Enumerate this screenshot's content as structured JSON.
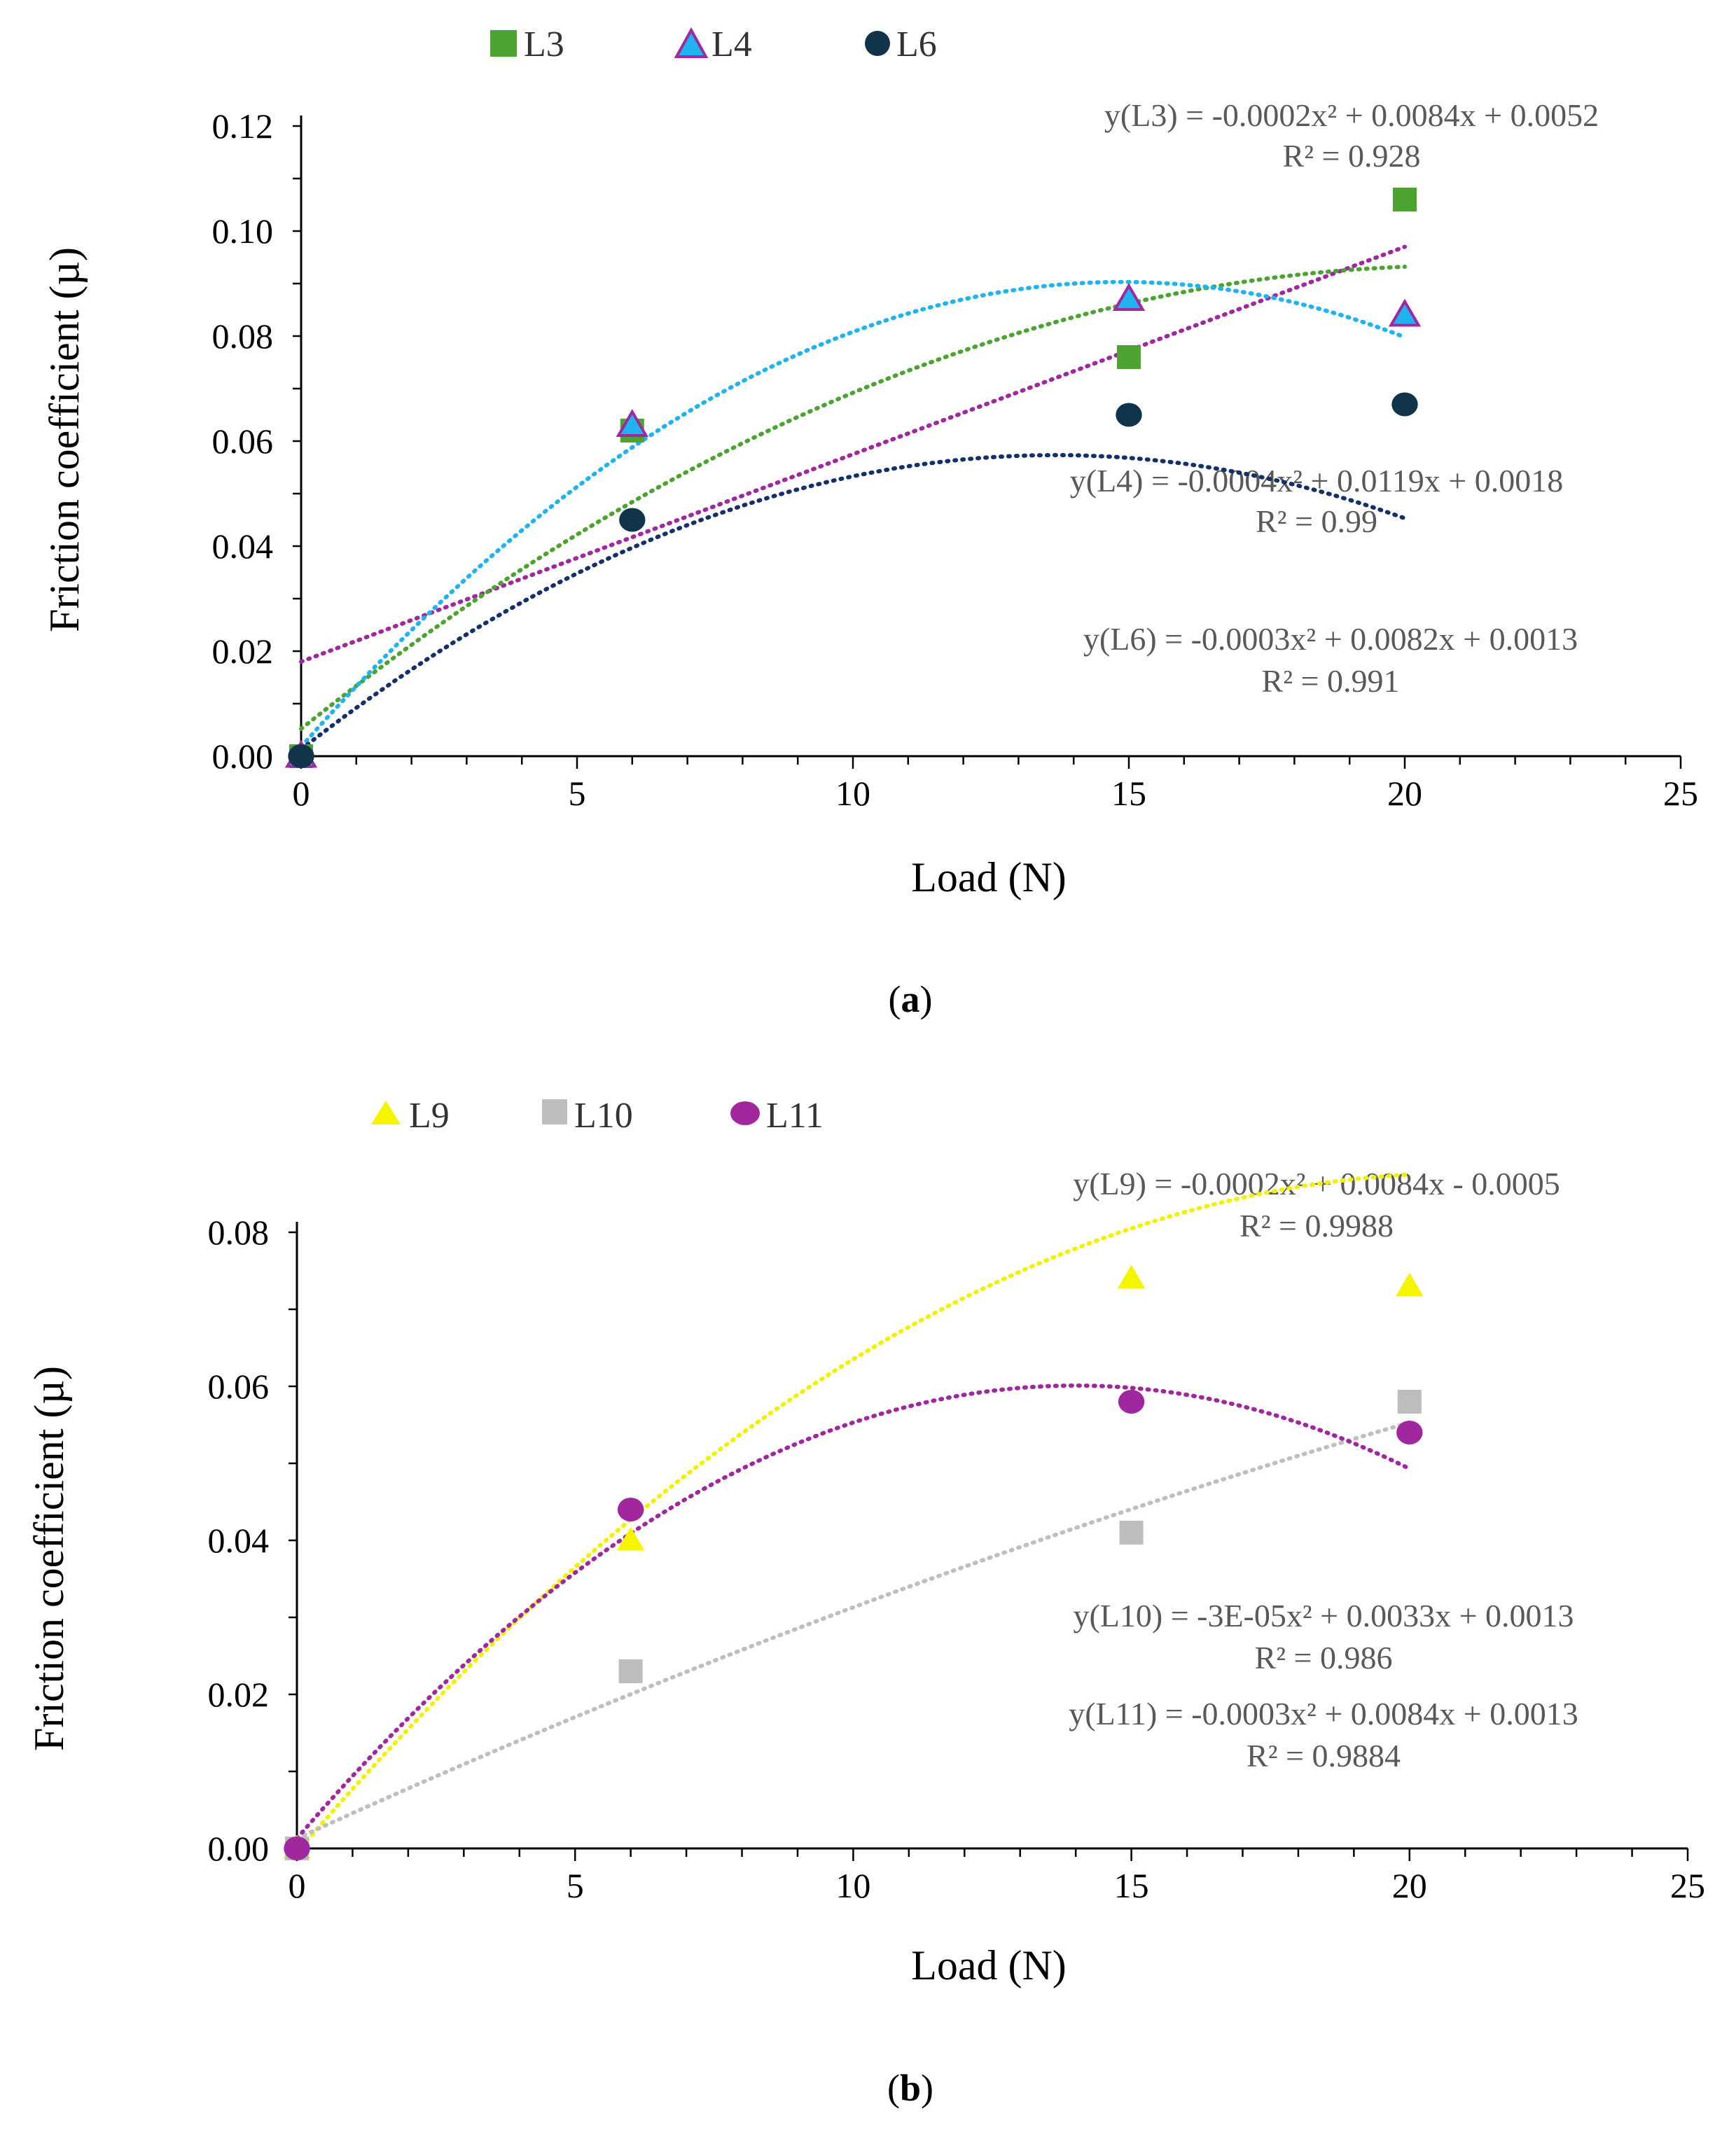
{
  "chart_data": [
    {
      "type": "scatter",
      "panel_label": {
        "open": "(",
        "letter": "a",
        "close": ")"
      },
      "xlabel": "Load (N)",
      "ylabel": "Friction coefficient (µ)",
      "xlim": [
        0,
        25
      ],
      "ylim": [
        0,
        0.12
      ],
      "x_ticks": [
        0,
        5,
        10,
        15,
        20,
        25
      ],
      "x_tick_labels": [
        "0",
        "5",
        "10",
        "15",
        "20",
        "25"
      ],
      "y_ticks": [
        0,
        0.02,
        0.04,
        0.06,
        0.08,
        0.1,
        0.12
      ],
      "y_tick_labels": [
        "0.00",
        "0.02",
        "0.04",
        "0.06",
        "0.08",
        "0.10",
        "0.12"
      ],
      "grid": false,
      "legend": "top-left",
      "series": [
        {
          "name": "L3",
          "marker": "square",
          "color": "#4CA330",
          "edge_color": "#4CA330",
          "trend_color": "#4CA330",
          "x": [
            0,
            6,
            15,
            20
          ],
          "y": [
            0.0,
            0.062,
            0.076,
            0.106
          ],
          "fit": {
            "a": -0.0002,
            "b": 0.0084,
            "c": 0.0052,
            "x_range": [
              0,
              20
            ]
          },
          "equation": "y(L3) = -0.0002x² + 0.0084x + 0.0052",
          "r2": "R² = 0.928"
        },
        {
          "name": "L4",
          "marker": "triangle",
          "color": "#1FB3F0",
          "edge_color": "#A0299F",
          "trend_color": "#1FB3F0",
          "x": [
            0,
            6,
            15,
            20
          ],
          "y": [
            0.0,
            0.063,
            0.087,
            0.084
          ],
          "fit": {
            "a": -0.0004,
            "b": 0.0119,
            "c": 0.0018,
            "x_range": [
              0,
              20
            ]
          },
          "equation": "y(L4) = -0.0004x² + 0.0119x + 0.0018",
          "r2": "R² = 0.99"
        },
        {
          "name": "L6",
          "marker": "circle",
          "color": "#10354A",
          "edge_color": "#10354A",
          "trend_color": "#13306B",
          "x": [
            0,
            6,
            15,
            20
          ],
          "y": [
            0.0,
            0.045,
            0.065,
            0.067
          ],
          "fit": {
            "a": -0.0003,
            "b": 0.0082,
            "c": 0.0013,
            "x_range": [
              0,
              20
            ]
          },
          "equation": "y(L6) = -0.0003x² + 0.0082x + 0.0013",
          "r2": "R² = 0.991"
        }
      ],
      "extra_trend": {
        "color": "#A0289E",
        "x": [
          0,
          20
        ],
        "y": [
          0.018,
          0.097
        ]
      }
    },
    {
      "type": "scatter",
      "panel_label": {
        "open": "(",
        "letter": "b",
        "close": ")"
      },
      "xlabel": "Load (N)",
      "ylabel": "Friction coefficient (µ)",
      "xlim": [
        0,
        25
      ],
      "ylim": [
        0,
        0.08
      ],
      "x_ticks": [
        0,
        5,
        10,
        15,
        20,
        25
      ],
      "x_tick_labels": [
        "0",
        "5",
        "10",
        "15",
        "20",
        "25"
      ],
      "y_ticks": [
        0,
        0.02,
        0.04,
        0.06,
        0.08
      ],
      "y_tick_labels": [
        "0.00",
        "0.02",
        "0.04",
        "0.06",
        "0.08"
      ],
      "grid": false,
      "legend": "top-left",
      "series": [
        {
          "name": "L9",
          "marker": "triangle",
          "color": "#F5F500",
          "edge_color": "#F5F500",
          "trend_color": "#F2F200",
          "x": [
            0,
            6,
            15,
            20
          ],
          "y": [
            0.0,
            0.04,
            0.074,
            0.073
          ],
          "fit": {
            "a": -0.0002,
            "b": 0.0084,
            "c": -0.0005,
            "x_range": [
              0,
              20
            ]
          },
          "equation": "y(L9) = -0.0002x² + 0.0084x - 0.0005",
          "r2": "R² = 0.9988"
        },
        {
          "name": "L10",
          "marker": "square",
          "color": "#BDBDBD",
          "edge_color": "#BDBDBD",
          "trend_color": "#BFBFBF",
          "x": [
            0,
            6,
            15,
            20
          ],
          "y": [
            0.0,
            0.023,
            0.041,
            0.058
          ],
          "fit": {
            "a": -3e-05,
            "b": 0.0033,
            "c": 0.0013,
            "x_range": [
              0,
              20
            ]
          },
          "equation": "y(L10) = -3E-05x² + 0.0033x + 0.0013",
          "r2": "R² = 0.986"
        },
        {
          "name": "L11",
          "marker": "circle",
          "color": "#A0279E",
          "edge_color": "#A0279E",
          "trend_color": "#A0279E",
          "x": [
            0,
            6,
            15,
            20
          ],
          "y": [
            0.0,
            0.044,
            0.058,
            0.054
          ],
          "fit": {
            "a": -0.0003,
            "b": 0.0084,
            "c": 0.0013,
            "x_range": [
              0,
              20
            ]
          },
          "equation": "y(L11) = -0.0003x² + 0.0084x + 0.0013",
          "r2": "R² = 0.9884"
        }
      ]
    }
  ]
}
